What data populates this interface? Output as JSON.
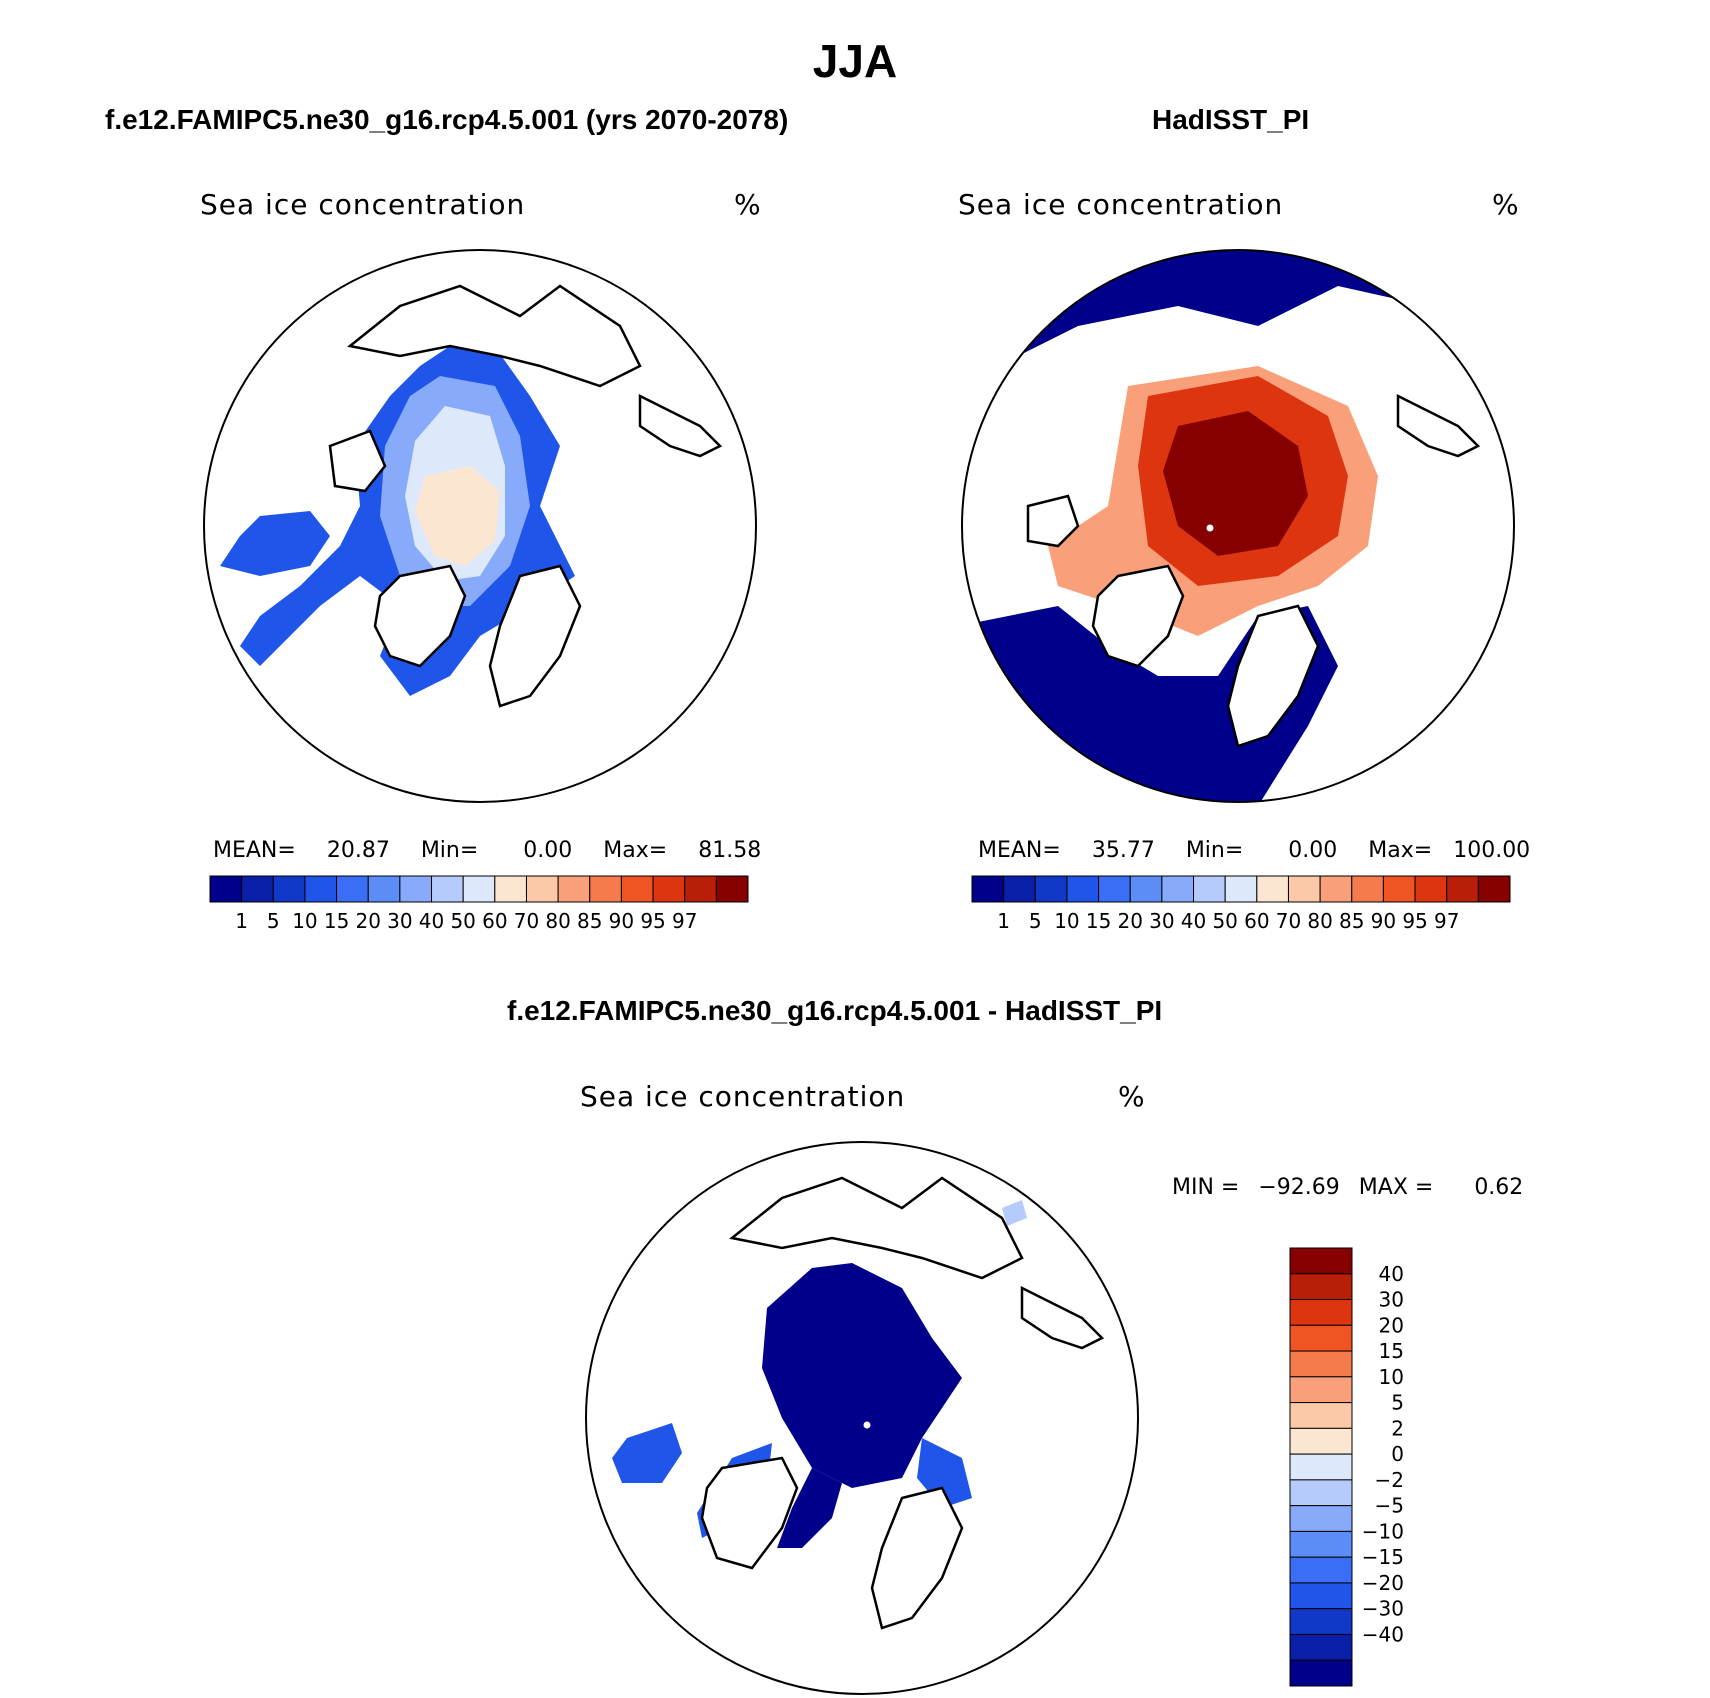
{
  "figure": {
    "title": "JJA",
    "panels": [
      {
        "id": "model",
        "title": "f.e12.FAMIPC5.ne30_g16.rcp4.5.001 (yrs 2070-2078)",
        "variable": "Sea ice concentration",
        "units": "%",
        "stats": {
          "mean_label": "MEAN=",
          "mean": "20.87",
          "min_label": "Min=",
          "min": "0.00",
          "max_label": "Max=",
          "max": "81.58"
        }
      },
      {
        "id": "obs",
        "title": "HadISST_PI",
        "variable": "Sea ice concentration",
        "units": "%",
        "stats": {
          "mean_label": "MEAN=",
          "mean": "35.77",
          "min_label": "Min=",
          "min": "0.00",
          "max_label": "Max=",
          "max": "100.00"
        }
      },
      {
        "id": "diff",
        "title": "f.e12.FAMIPC5.ne30_g16.rcp4.5.001 - HadISST_PI",
        "variable": "Sea ice concentration",
        "units": "%",
        "stats": {
          "min_label": "MIN =",
          "min": "−92.69",
          "max_label": "MAX =",
          "max": "0.62"
        }
      }
    ]
  },
  "colorbars": {
    "abs": {
      "levels": [
        "1",
        "5",
        "10",
        "15",
        "20",
        "30",
        "40",
        "50",
        "60",
        "70",
        "80",
        "85",
        "90",
        "95",
        "97"
      ],
      "colors": [
        "#00008b",
        "#0a1fa8",
        "#1238c8",
        "#1f55e8",
        "#3a6ff5",
        "#5c8df7",
        "#87aafa",
        "#b5cbfb",
        "#dde9fb",
        "#fbe6d2",
        "#fbc8a8",
        "#f9a07a",
        "#f57a4c",
        "#ee5522",
        "#dc3510",
        "#b81e08",
        "#870000"
      ]
    },
    "diff": {
      "levels": [
        "40",
        "30",
        "20",
        "15",
        "10",
        "5",
        "2",
        "0",
        "−2",
        "−5",
        "−10",
        "−15",
        "−20",
        "−30",
        "−40"
      ],
      "colors": [
        "#870000",
        "#b81e08",
        "#dc3510",
        "#ee5522",
        "#f57a4c",
        "#f9a07a",
        "#fbc8a8",
        "#fbe6d2",
        "#dde9fb",
        "#b5cbfb",
        "#87aafa",
        "#5c8df7",
        "#3a6ff5",
        "#1f55e8",
        "#1238c8",
        "#0a1fa8",
        "#00008b"
      ]
    }
  },
  "colors": {
    "land_outline": "#000000",
    "model_fill_outer": "#1f55e8",
    "model_fill_mid": "#87aafa",
    "model_fill_inner": "#dde9fb",
    "model_fill_core": "#fbe6d2",
    "obs_open_ocean": "#00008b",
    "obs_ice_edge": "#f9a07a",
    "obs_ice_mid": "#dc3510",
    "obs_ice_core": "#870000",
    "diff_loss": "#00008b",
    "diff_edge": "#1f55e8",
    "diff_gain": "#b5cbfb"
  }
}
